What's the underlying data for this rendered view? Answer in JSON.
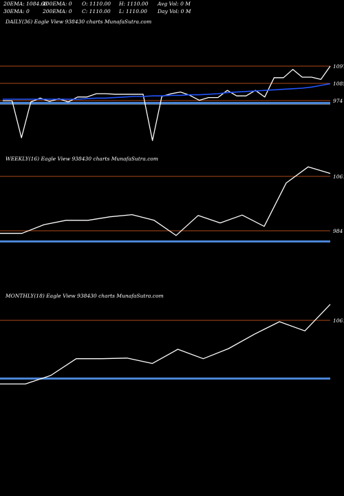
{
  "header": {
    "ema20": "20EMA: 1084.68",
    "ema100": "100EMA: 0",
    "open": "O: 1110.00",
    "high": "H: 1110.00",
    "avg_vol": "Avg Vol: 0  M",
    "ema30": "30EMA: 0",
    "ema200": "200EMA: 0",
    "close": "C: 1110.00",
    "low": "L: 1110.00",
    "day_vol": "Day Vol: 0  M"
  },
  "colors": {
    "background": "#000000",
    "price_line": "#ffffff",
    "ema_line": "#2255ff",
    "level_line": "#b04a1a",
    "band": "#4a86d8"
  },
  "chart_data": [
    {
      "type": "line",
      "name": "daily",
      "title": "DAILY(36) Eagle  View  938430  charts MunafaSutra.com",
      "x": [
        1,
        2,
        3,
        4,
        5,
        6,
        7,
        8,
        9,
        10,
        11,
        12,
        13,
        14,
        15,
        16,
        17,
        18,
        19,
        20,
        21,
        22,
        23,
        24,
        25,
        26,
        27,
        28,
        29,
        30,
        31,
        32,
        33,
        34,
        35,
        36
      ],
      "series": [
        {
          "values": [
            947,
            947,
            880,
            945,
            952,
            946,
            951,
            945,
            954,
            954,
            960,
            960,
            959,
            959,
            959,
            959,
            875,
            955,
            960,
            963,
            957,
            948,
            953,
            953,
            966,
            956,
            956,
            966,
            954,
            989,
            989,
            1004,
            990,
            990,
            986,
            1010
          ]
        },
        {
          "values": [
            950,
            950,
            950,
            950,
            950,
            950,
            950,
            950,
            950,
            951,
            952,
            952,
            953,
            954,
            955,
            955,
            956,
            956,
            957,
            957,
            958,
            958,
            959,
            960,
            962,
            963,
            964,
            965,
            966,
            967,
            968,
            969,
            970,
            972,
            975,
            978
          ]
        }
      ],
      "levels": [
        {
          "value": 1097,
          "label": "1097"
        },
        {
          "value": 1085,
          "label": "1085"
        },
        {
          "value": 974,
          "label": "974"
        }
      ],
      "ylim": [
        865,
        1030
      ]
    },
    {
      "type": "line",
      "name": "weekly",
      "title": "WEEKLY(16) Eagle  View  938430  charts MunafaSutra.com",
      "x": [
        1,
        2,
        3,
        4,
        5,
        6,
        7,
        8,
        9,
        10,
        11,
        12,
        13,
        14,
        15,
        16
      ],
      "series": [
        {
          "values": [
            955,
            955,
            975,
            985,
            985,
            993,
            998,
            985,
            950,
            996,
            979,
            997,
            971,
            1071,
            1108,
            1093
          ]
        }
      ],
      "levels": [
        {
          "value": 1061,
          "label": "1061"
        },
        {
          "value": 984,
          "label": "984"
        }
      ],
      "ylim": [
        945,
        1175
      ]
    },
    {
      "type": "line",
      "name": "monthly",
      "title": "MONTHLY(18) Eagle  View  938430  charts MunafaSutra.com",
      "x": [
        1,
        2,
        3,
        4,
        5,
        6,
        7,
        8,
        9,
        10,
        11,
        12,
        13,
        14
      ],
      "series": [
        {
          "values": [
            903,
            903,
            930,
            983,
            983,
            985,
            968,
            1013,
            983,
            1015,
            1060,
            1100,
            1071,
            1155
          ]
        }
      ],
      "levels": [
        {
          "value": 1061,
          "label": "1061"
        }
      ],
      "ylim": [
        880,
        1185
      ]
    }
  ]
}
